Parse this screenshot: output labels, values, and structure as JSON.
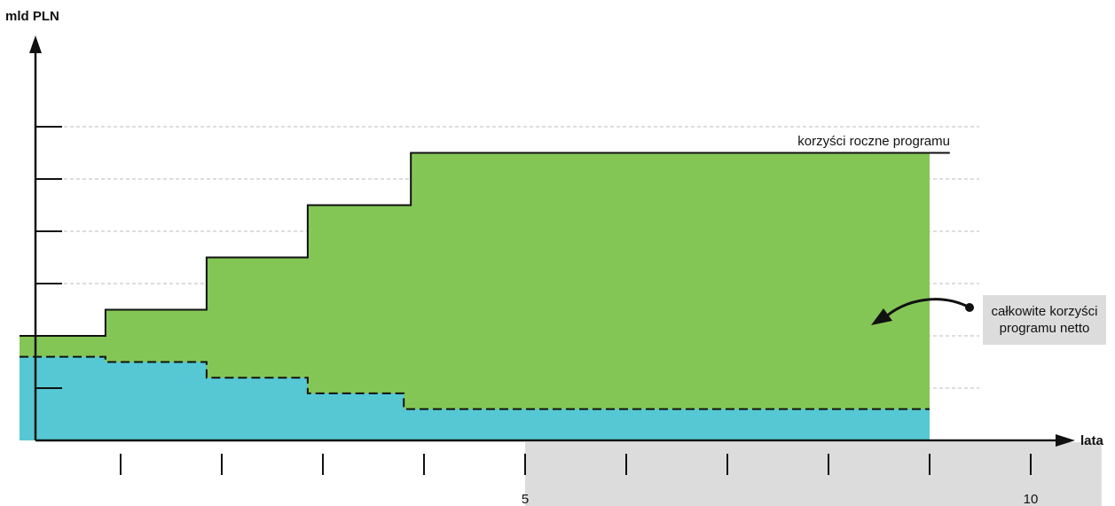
{
  "chart_data": {
    "type": "area",
    "ylabel": "mld PLN",
    "xlabel": "lata",
    "x_tick_labels": [
      {
        "x": 5,
        "label": "5"
      },
      {
        "x": 10,
        "label": "10"
      }
    ],
    "x_ticks": [
      1,
      2,
      3,
      4,
      5,
      6,
      7,
      8,
      9,
      10
    ],
    "xlim": [
      0,
      11.6
    ],
    "ylim": [
      0,
      7.5
    ],
    "grid": true,
    "series": [
      {
        "name": "korzyści roczne programu",
        "style": "solid-step",
        "color": "#111111",
        "steps": [
          {
            "x_start": 0,
            "x_end": 0.85,
            "value": 2.0
          },
          {
            "x_start": 0.85,
            "x_end": 1.85,
            "value": 2.5
          },
          {
            "x_start": 1.85,
            "x_end": 2.85,
            "value": 3.5
          },
          {
            "x_start": 2.85,
            "x_end": 3.87,
            "value": 4.5
          },
          {
            "x_start": 3.87,
            "x_end": 9.2,
            "value": 5.5
          }
        ]
      },
      {
        "name": "",
        "style": "dashed-step",
        "color": "#111111",
        "steps": [
          {
            "x_start": 0,
            "x_end": 0.85,
            "value": 1.6
          },
          {
            "x_start": 0.85,
            "x_end": 1.85,
            "value": 1.5
          },
          {
            "x_start": 1.85,
            "x_end": 2.85,
            "value": 1.2
          },
          {
            "x_start": 2.85,
            "x_end": 3.8,
            "value": 0.9
          },
          {
            "x_start": 3.8,
            "x_end": 9.0,
            "value": 0.6
          }
        ]
      }
    ],
    "fill_x_end": 9.0,
    "fills": {
      "benefits_area": "#84c655",
      "cost_area": "#55c8d4"
    },
    "annotations": [
      {
        "text": "korzyści roczne programu"
      },
      {
        "text_lines": [
          "całkowite korzyści",
          "programu netto"
        ]
      }
    ],
    "highlight_band": {
      "x_start": 5,
      "x_end": 10.7,
      "color": "#dcdcdc"
    }
  }
}
